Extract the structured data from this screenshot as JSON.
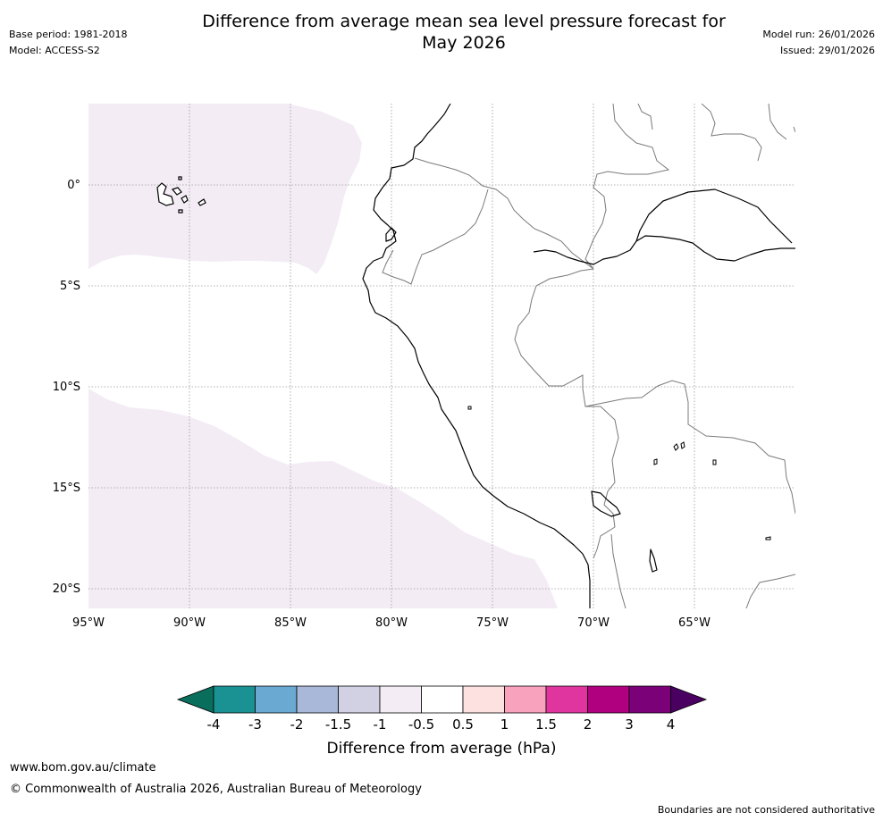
{
  "header": {
    "title_line1": "Difference from average mean sea level pressure forecast for",
    "title_line2": "May 2026",
    "base_period": "Base period: 1981-2018",
    "model": "Model: ACCESS-S2",
    "model_run": "Model run: 26/01/2026",
    "issued": "Issued: 29/01/2026"
  },
  "map": {
    "lat_labels": [
      "0°",
      "5°S",
      "10°S",
      "15°S",
      "20°S"
    ],
    "lon_labels": [
      "95°W",
      "90°W",
      "85°W",
      "80°W",
      "75°W",
      "70°W",
      "65°W"
    ],
    "region_color": "#f3ecf5"
  },
  "colorbar": {
    "title": "Difference from average (hPa)",
    "tick_labels": [
      "-4",
      "-3",
      "-2",
      "-1.5",
      "-1",
      "-0.5",
      "0.5",
      "1",
      "1.5",
      "2",
      "3",
      "4"
    ],
    "colors": {
      "lt_-4": "#0a6e5d",
      "-4_-3": "#1a9192",
      "-3_-2": "#6aaad2",
      "-2_-1.5": "#a9b8d9",
      "-1.5_-1": "#d2d1e4",
      "-1_-0.5": "#f3ecf5",
      "-0.5_0.5": "#ffffff",
      "0.5_1": "#fde0e0",
      "1_1.5": "#f9a2bd",
      "1.5_2": "#e0359e",
      "2_3": "#b0007f",
      "3_4": "#7b0179",
      "gt_4": "#4a0060"
    }
  },
  "footer": {
    "url": "www.bom.gov.au/climate",
    "copyright": "© Commonwealth of Australia 2026, Australian Bureau of Meteorology",
    "note": "Boundaries are not considered authoritative"
  }
}
